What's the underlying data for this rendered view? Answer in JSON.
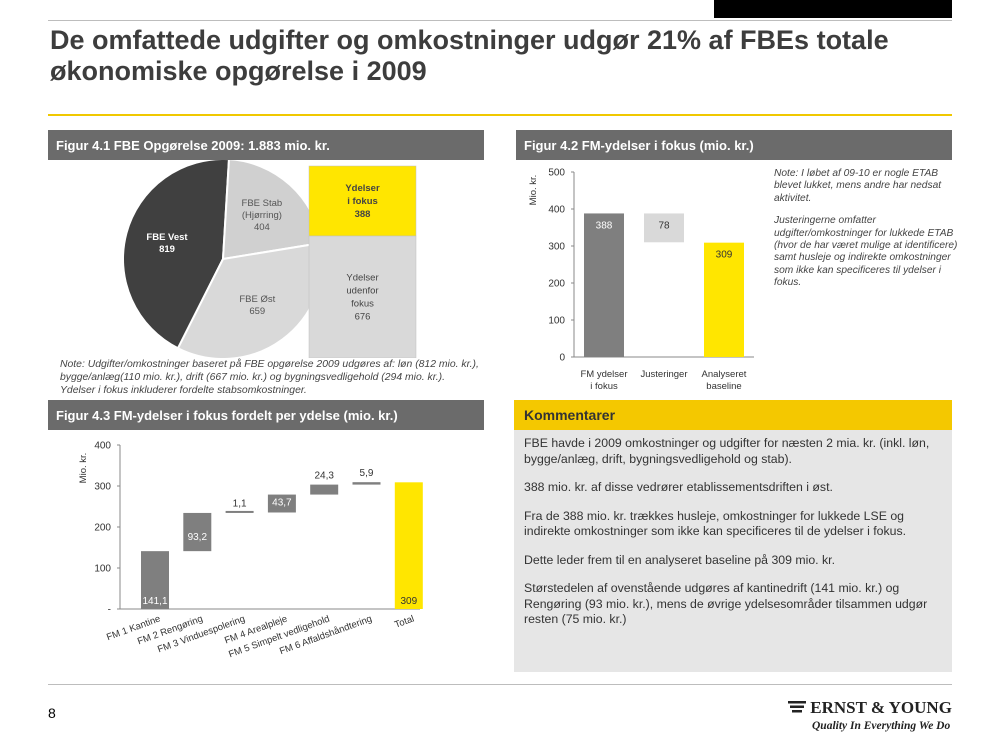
{
  "slide": {
    "title": "De omfattede udgifter og omkostninger udgør 21% af FBEs totale økonomiske opgørelse i 2009",
    "page_number": "8"
  },
  "colors": {
    "accent": "#f4c800",
    "yellow": "#ffe600",
    "dark": "#404040",
    "mid": "#7f7f7f",
    "light": "#d9d9d9"
  },
  "fig41": {
    "header": "Figur 4.1 FBE Opgørelse 2009: 1.883 mio. kr.",
    "note": "Note: Udgifter/omkostninger baseret på FBE opgørelse 2009 udgøres af: løn (812 mio. kr.), bygge/anlæg(110 mio. kr.), drift (667 mio. kr.) og bygningsvedligehold (294 mio. kr.). Ydelser i fokus inkluderer fordelte stabsomkostninger."
  },
  "fig42": {
    "header": "Figur 4.2 FM-ydelser i fokus (mio. kr.)",
    "note_1": "Note: I løbet af 09-10 er nogle ETAB blevet lukket, mens andre har nedsat aktivitet.",
    "note_2": "Justeringerne omfatter udgifter/omkostninger for lukkede ETAB (hvor de har været mulige at identificere) samt husleje og indirekte omkostninger som ikke kan specificeres til ydelser i fokus."
  },
  "fig43": {
    "header": "Figur 4.3 FM-ydelser i fokus fordelt per ydelse (mio. kr.)"
  },
  "kommentarer": {
    "header": "Kommentarer",
    "p1": "FBE havde i 2009 omkostninger og udgifter for næsten 2 mia. kr. (inkl. løn, bygge/anlæg, drift, bygningsvedligehold og stab).",
    "p2": "388 mio. kr. af disse vedrører etablissementsdriften i øst.",
    "p3": "Fra de 388 mio. kr. trækkes husleje, omkostninger for lukkede LSE og indirekte omkostninger som ikke kan specificeres til de ydelser i fokus.",
    "p4": "Dette leder frem til en analyseret baseline på 309 mio. kr.",
    "p5": "Størstedelen af ovenstående udgøres af kantinedrift (141 mio. kr.) og Rengøring (93 mio. kr.), mens de øvrige ydelsesområder tilsammen udgør resten (75 mio. kr.)"
  },
  "logo": {
    "name": "ERNST & YOUNG",
    "tagline": "Quality In Everything We Do"
  },
  "chart_data": [
    {
      "type": "pie",
      "slices": [
        {
          "label_lines": [
            "FBE Vest"
          ],
          "value": 819,
          "value_label": "819",
          "color": "#404040"
        },
        {
          "label_lines": [
            "FBE Stab",
            "(Hjørring)"
          ],
          "value": 404,
          "value_label": "404",
          "color": "#d0d0d0"
        },
        {
          "label_lines": [
            "FBE Øst"
          ],
          "value": 659,
          "value_label": "659",
          "color": "#d9d9d9"
        }
      ],
      "stack": [
        {
          "label_lines": [
            "Ydelser",
            "i fokus"
          ],
          "value": 388,
          "value_label": "388",
          "color": "#ffe600"
        },
        {
          "label_lines": [
            "Ydelser",
            "udenfor",
            "fokus"
          ],
          "value": 676,
          "value_label": "676",
          "color": "#d9d9d9"
        }
      ]
    },
    {
      "type": "bar",
      "ylabel": "Mio. kr.",
      "ylim": [
        0,
        500
      ],
      "yticks": [
        "0",
        "100",
        "200",
        "300",
        "400",
        "500"
      ],
      "categories": [
        [
          "FM ydelser",
          "i fokus"
        ],
        [
          "Justeringer"
        ],
        [
          "Analyseret",
          "baseline"
        ]
      ],
      "bars": [
        {
          "base": 0,
          "value": 388,
          "label": "388",
          "color": "#7f7f7f"
        },
        {
          "base": 310,
          "value": 78,
          "label": "78",
          "color": "#d9d9d9"
        },
        {
          "base": 0,
          "value": 309,
          "label": "309",
          "color": "#ffe600"
        }
      ]
    },
    {
      "type": "bar",
      "subtype": "waterfall",
      "ylabel": "Mio. kr.",
      "ylim": [
        0,
        400
      ],
      "yticks": [
        "-",
        "100",
        "200",
        "300",
        "400"
      ],
      "categories": [
        "FM 1 Kantine",
        "FM 2 Rengøring",
        "FM 3 Vinduespolering",
        "FM 4 Arealpleje",
        "FM 5 Simpelt vedligehold",
        "FM 6 Affaldshåndtering",
        "Total"
      ],
      "bars": [
        {
          "base": 0,
          "value": 141.1,
          "label": "141,1",
          "color": "#7f7f7f"
        },
        {
          "base": 141.1,
          "value": 93.2,
          "label": "93,2",
          "color": "#7f7f7f"
        },
        {
          "base": 234.3,
          "value": 1.1,
          "label": "1,1",
          "color": "#7f7f7f"
        },
        {
          "base": 235.4,
          "value": 43.7,
          "label": "43,7",
          "color": "#7f7f7f"
        },
        {
          "base": 279.1,
          "value": 24.3,
          "label": "24,3",
          "color": "#7f7f7f"
        },
        {
          "base": 303.4,
          "value": 5.9,
          "label": "5,9",
          "color": "#7f7f7f"
        },
        {
          "base": 0,
          "value": 309,
          "label": "309",
          "color": "#ffe600"
        }
      ]
    }
  ]
}
